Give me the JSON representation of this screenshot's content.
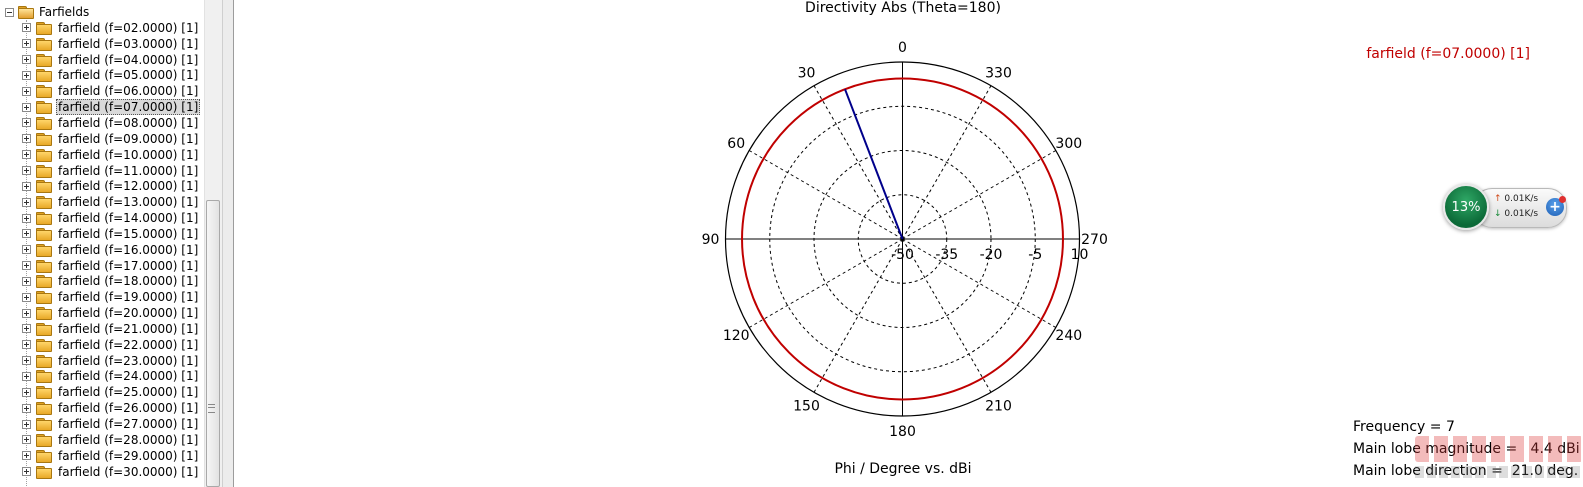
{
  "tree": {
    "root_label": "Farfields",
    "items": [
      {
        "label": "farfield (f=02.0000) [1]"
      },
      {
        "label": "farfield (f=03.0000) [1]"
      },
      {
        "label": "farfield (f=04.0000) [1]"
      },
      {
        "label": "farfield (f=05.0000) [1]"
      },
      {
        "label": "farfield (f=06.0000) [1]"
      },
      {
        "label": "farfield (f=07.0000) [1]",
        "selected": true
      },
      {
        "label": "farfield (f=08.0000) [1]"
      },
      {
        "label": "farfield (f=09.0000) [1]"
      },
      {
        "label": "farfield (f=10.0000) [1]"
      },
      {
        "label": "farfield (f=11.0000) [1]"
      },
      {
        "label": "farfield (f=12.0000) [1]"
      },
      {
        "label": "farfield (f=13.0000) [1]"
      },
      {
        "label": "farfield (f=14.0000) [1]"
      },
      {
        "label": "farfield (f=15.0000) [1]"
      },
      {
        "label": "farfield (f=16.0000) [1]"
      },
      {
        "label": "farfield (f=17.0000) [1]"
      },
      {
        "label": "farfield (f=18.0000) [1]"
      },
      {
        "label": "farfield (f=19.0000) [1]"
      },
      {
        "label": "farfield (f=20.0000) [1]"
      },
      {
        "label": "farfield (f=21.0000) [1]"
      },
      {
        "label": "farfield (f=22.0000) [1]"
      },
      {
        "label": "farfield (f=23.0000) [1]"
      },
      {
        "label": "farfield (f=24.0000) [1]"
      },
      {
        "label": "farfield (f=25.0000) [1]"
      },
      {
        "label": "farfield (f=26.0000) [1]"
      },
      {
        "label": "farfield (f=27.0000) [1]"
      },
      {
        "label": "farfield (f=28.0000) [1]"
      },
      {
        "label": "farfield (f=29.0000) [1]"
      },
      {
        "label": "farfield (f=30.0000) [1]"
      }
    ]
  },
  "plot": {
    "title": "Directivity Abs (Theta=180)",
    "xaxis_label": "Phi / Degree vs. dBi",
    "legend_label": "farfield (f=07.0000) [1]"
  },
  "info": {
    "frequency": "Frequency = 7",
    "main_lobe_magnitude": "Main lobe magnitude =   4.4 dBi",
    "main_lobe_direction": "Main lobe direction =  21.0 deg."
  },
  "net_widget": {
    "percent": "13%",
    "upload": "0.01K/s",
    "download": "0.01K/s"
  },
  "colors": {
    "series": "#c00000",
    "main_lobe": "#00008b",
    "legend": "#c00000"
  },
  "chart_data": {
    "type": "polar",
    "title": "Directivity Abs (Theta=180)",
    "xlabel": "Phi / Degree vs. dBi",
    "angle_ticks": [
      "0",
      "30",
      "60",
      "90",
      "120",
      "150",
      "180",
      "210",
      "240",
      "270",
      "300",
      "330"
    ],
    "angle_direction": "counterclockwise from top",
    "radial_ticks": [
      "-50",
      "-35",
      "-20",
      "-5",
      "10"
    ],
    "radial_range": [
      -50,
      10
    ],
    "grid": true,
    "series": [
      {
        "name": "farfield (f=07.0000) [1]",
        "phi_deg": [
          0,
          360
        ],
        "directivity_dbi": [
          4.4,
          4.4
        ],
        "shape": "circle"
      }
    ],
    "main_lobe": {
      "direction_deg": 21.0,
      "magnitude_dbi": 4.4
    }
  }
}
